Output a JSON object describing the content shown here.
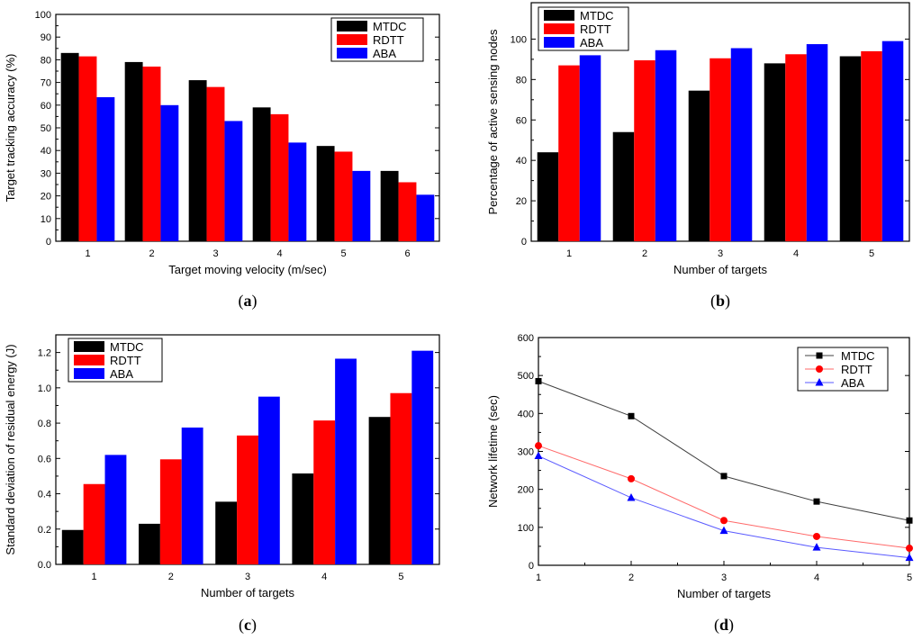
{
  "colors": {
    "MTDC": "#000000",
    "RDTT": "#ff0000",
    "ABA": "#0000ff",
    "line_MTDC": "#404040",
    "line_RDTT": "#ff6a6a",
    "line_ABA": "#5a5aff"
  },
  "chart_data": [
    {
      "id": "a",
      "type": "bar",
      "caption_letter": "a",
      "categories": [
        "1",
        "2",
        "3",
        "4",
        "5",
        "6"
      ],
      "series": [
        {
          "name": "MTDC",
          "values": [
            83,
            79,
            71,
            59,
            42,
            31
          ]
        },
        {
          "name": "RDTT",
          "values": [
            81.5,
            77,
            68,
            56,
            39.5,
            26
          ]
        },
        {
          "name": "ABA",
          "values": [
            63.5,
            60,
            53,
            43.5,
            31,
            20.5
          ]
        }
      ],
      "xlabel": "Target moving velocity (m/sec)",
      "ylabel": "Target tracking accuracy (%)",
      "ylim": [
        0,
        100
      ],
      "yticks": [
        0,
        10,
        20,
        30,
        40,
        50,
        60,
        70,
        80,
        90,
        100
      ],
      "legend": "top-right"
    },
    {
      "id": "b",
      "type": "bar",
      "caption_letter": "b",
      "categories": [
        "1",
        "2",
        "3",
        "4",
        "5"
      ],
      "series": [
        {
          "name": "MTDC",
          "values": [
            44,
            54,
            74.5,
            88,
            91.5
          ]
        },
        {
          "name": "RDTT",
          "values": [
            87,
            89.5,
            90.5,
            92.5,
            94
          ]
        },
        {
          "name": "ABA",
          "values": [
            92,
            94.5,
            95.5,
            97.5,
            99
          ]
        }
      ],
      "xlabel": "Number of targets",
      "ylabel": "Percentage of active sensing nodes",
      "ylim": [
        0,
        118
      ],
      "yticks": [
        0,
        20,
        40,
        60,
        80,
        100
      ],
      "legend": "top-left"
    },
    {
      "id": "c",
      "type": "bar",
      "caption_letter": "c",
      "categories": [
        "1",
        "2",
        "3",
        "4",
        "5"
      ],
      "series": [
        {
          "name": "MTDC",
          "values": [
            0.195,
            0.23,
            0.355,
            0.515,
            0.835
          ]
        },
        {
          "name": "RDTT",
          "values": [
            0.455,
            0.595,
            0.73,
            0.815,
            0.97
          ]
        },
        {
          "name": "ABA",
          "values": [
            0.62,
            0.775,
            0.95,
            1.165,
            1.21
          ]
        }
      ],
      "xlabel": "Number of targets",
      "ylabel": "Standard deviation of residual energy (J)",
      "ylim": [
        0,
        1.3
      ],
      "yticks": [
        0.0,
        0.2,
        0.4,
        0.6,
        0.8,
        1.0,
        1.2
      ],
      "ytick_labels": [
        "0.0",
        "0.2",
        "0.4",
        "0.6",
        "0.8",
        "1.0",
        "1.2"
      ],
      "legend": "top-left"
    },
    {
      "id": "d",
      "type": "line",
      "caption_letter": "d",
      "x": [
        1,
        2,
        3,
        4,
        5
      ],
      "series": [
        {
          "name": "MTDC",
          "values": [
            485,
            393,
            235,
            168,
            118
          ],
          "marker": "square"
        },
        {
          "name": "RDTT",
          "values": [
            315,
            228,
            118,
            76,
            45
          ],
          "marker": "circle"
        },
        {
          "name": "ABA",
          "values": [
            288,
            178,
            91,
            47,
            20
          ],
          "marker": "triangle"
        }
      ],
      "xlabel": "Number of targets",
      "ylabel": "Network lifetime (sec)",
      "xlim": [
        1,
        5
      ],
      "ylim": [
        0,
        600
      ],
      "xticks": [
        1,
        2,
        3,
        4,
        5
      ],
      "yticks": [
        0,
        100,
        200,
        300,
        400,
        500,
        600
      ],
      "legend": "top-right"
    }
  ]
}
